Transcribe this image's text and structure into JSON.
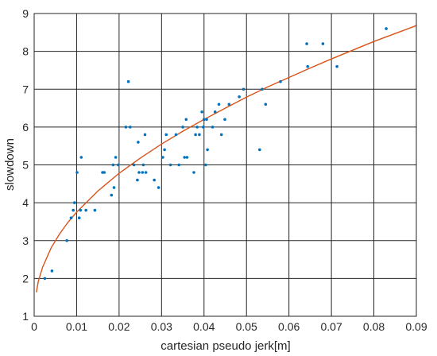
{
  "chart_data": {
    "type": "scatter",
    "title": "",
    "xlabel": "cartesian pseudo jerk[m]",
    "ylabel": "slowdown",
    "xlim": [
      0,
      0.09
    ],
    "ylim": [
      1,
      9
    ],
    "grid": true,
    "xticks": [
      0,
      0.01,
      0.02,
      0.03,
      0.04,
      0.05,
      0.06,
      0.07,
      0.08,
      0.09
    ],
    "yticks": [
      1,
      2,
      3,
      4,
      5,
      6,
      7,
      8,
      9
    ],
    "xtick_labels": [
      "0",
      "0.01",
      "0.02",
      "0.03",
      "0.04",
      "0.05",
      "0.06",
      "0.07",
      "0.08",
      "0.09"
    ],
    "ytick_labels": [
      "1",
      "2",
      "3",
      "4",
      "5",
      "6",
      "7",
      "8",
      "9"
    ],
    "colors": {
      "points": "#0072BD",
      "fit": "#D95319",
      "grid": "#262626",
      "axes": "#262626"
    },
    "series": [
      {
        "kind": "scatter",
        "points": [
          [
            0.0025,
            2.0
          ],
          [
            0.0042,
            2.2
          ],
          [
            0.0077,
            3.0
          ],
          [
            0.0087,
            3.6
          ],
          [
            0.0092,
            3.8
          ],
          [
            0.0095,
            4.0
          ],
          [
            0.0101,
            4.8
          ],
          [
            0.0106,
            3.6
          ],
          [
            0.0109,
            3.8
          ],
          [
            0.0111,
            5.2
          ],
          [
            0.0122,
            3.8
          ],
          [
            0.0143,
            3.8
          ],
          [
            0.0161,
            4.8
          ],
          [
            0.0165,
            4.8
          ],
          [
            0.0182,
            4.2
          ],
          [
            0.0186,
            5.0
          ],
          [
            0.0188,
            4.4
          ],
          [
            0.0192,
            5.2
          ],
          [
            0.0198,
            5.0
          ],
          [
            0.0216,
            6.0
          ],
          [
            0.0222,
            7.2
          ],
          [
            0.0226,
            6.0
          ],
          [
            0.0235,
            5.0
          ],
          [
            0.0243,
            4.6
          ],
          [
            0.0245,
            5.6
          ],
          [
            0.0247,
            4.8
          ],
          [
            0.0255,
            4.8
          ],
          [
            0.0257,
            5.0
          ],
          [
            0.0261,
            5.8
          ],
          [
            0.0263,
            4.8
          ],
          [
            0.0283,
            4.6
          ],
          [
            0.0293,
            4.4
          ],
          [
            0.0303,
            5.2
          ],
          [
            0.0307,
            5.4
          ],
          [
            0.0311,
            5.8
          ],
          [
            0.0321,
            5.0
          ],
          [
            0.0334,
            5.8
          ],
          [
            0.0341,
            5.0
          ],
          [
            0.035,
            6.0
          ],
          [
            0.0354,
            5.2
          ],
          [
            0.0358,
            6.2
          ],
          [
            0.036,
            5.2
          ],
          [
            0.0376,
            4.8
          ],
          [
            0.038,
            5.8
          ],
          [
            0.0384,
            6.0
          ],
          [
            0.0389,
            5.8
          ],
          [
            0.0395,
            6.4
          ],
          [
            0.0398,
            6.0
          ],
          [
            0.04,
            6.2
          ],
          [
            0.0404,
            5.0
          ],
          [
            0.0406,
            6.2
          ],
          [
            0.0408,
            5.4
          ],
          [
            0.042,
            6.0
          ],
          [
            0.0426,
            6.4
          ],
          [
            0.0435,
            6.6
          ],
          [
            0.0441,
            5.8
          ],
          [
            0.0449,
            6.2
          ],
          [
            0.0459,
            6.6
          ],
          [
            0.0483,
            6.8
          ],
          [
            0.0493,
            7.0
          ],
          [
            0.0531,
            5.4
          ],
          [
            0.0537,
            7.0
          ],
          [
            0.0545,
            6.6
          ],
          [
            0.058,
            7.2
          ],
          [
            0.0642,
            8.2
          ],
          [
            0.0644,
            7.6
          ],
          [
            0.068,
            8.2
          ],
          [
            0.0713,
            7.6
          ],
          [
            0.0829,
            8.6
          ]
        ]
      },
      {
        "kind": "fit-line",
        "x": [
          0.0005,
          0.001,
          0.002,
          0.004,
          0.006,
          0.008,
          0.01,
          0.015,
          0.02,
          0.025,
          0.03,
          0.035,
          0.04,
          0.045,
          0.05,
          0.055,
          0.06,
          0.065,
          0.07,
          0.075,
          0.08,
          0.085,
          0.09
        ],
        "y": [
          1.63,
          1.93,
          2.3,
          2.81,
          3.18,
          3.49,
          3.75,
          4.31,
          4.78,
          5.18,
          5.55,
          5.89,
          6.2,
          6.5,
          6.79,
          7.06,
          7.31,
          7.56,
          7.8,
          8.03,
          8.26,
          8.47,
          8.68
        ]
      }
    ]
  }
}
